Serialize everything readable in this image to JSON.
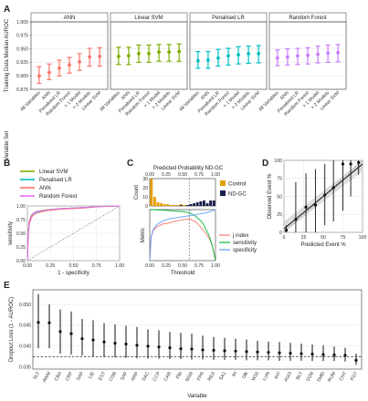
{
  "figure": {
    "panel_letters": [
      "A",
      "B",
      "C",
      "D",
      "E"
    ]
  },
  "chart_data": [
    {
      "panel": "A",
      "type": "scatter",
      "subtype": "pointrange-faceted",
      "ylabel": "Training Data Median AUROC",
      "xlabel": "Variable Set",
      "ylim": [
        0.875,
        1.0
      ],
      "yticks": [
        "0.875",
        "0.900",
        "0.925",
        "0.950",
        "0.975",
        "1.000"
      ],
      "categories": [
        "All Variables",
        "ANN",
        "Penalised LR",
        "Random Forest",
        "> 1 Model",
        "> 2 Models",
        "Linear SVM"
      ],
      "facets": [
        {
          "name": "ANN",
          "color": "#F8766D",
          "mid": [
            0.9,
            0.906,
            0.914,
            0.92,
            0.926,
            0.935,
            0.936
          ],
          "lo": [
            0.886,
            0.893,
            0.9,
            0.905,
            0.91,
            0.918,
            0.918
          ],
          "hi": [
            0.917,
            0.922,
            0.929,
            0.934,
            0.941,
            0.951,
            0.952
          ]
        },
        {
          "name": "Linear SVM",
          "color": "#7CAE00",
          "mid": [
            0.936,
            0.937,
            0.941,
            0.941,
            0.944,
            0.944,
            0.945
          ],
          "lo": [
            0.921,
            0.921,
            0.925,
            0.925,
            0.927,
            0.927,
            0.927
          ],
          "hi": [
            0.953,
            0.953,
            0.957,
            0.957,
            0.958,
            0.958,
            0.959
          ]
        },
        {
          "name": "Penalised LR",
          "color": "#00BFC4",
          "mid": [
            0.928,
            0.929,
            0.933,
            0.937,
            0.939,
            0.941,
            0.941
          ],
          "lo": [
            0.914,
            0.914,
            0.918,
            0.92,
            0.922,
            0.923,
            0.924
          ],
          "hi": [
            0.945,
            0.945,
            0.949,
            0.951,
            0.954,
            0.955,
            0.956
          ]
        },
        {
          "name": "Random Forest",
          "color": "#C77CFF",
          "mid": [
            0.933,
            0.935,
            0.937,
            0.938,
            0.94,
            0.942,
            0.943
          ],
          "lo": [
            0.919,
            0.92,
            0.921,
            0.922,
            0.924,
            0.925,
            0.926
          ],
          "hi": [
            0.948,
            0.95,
            0.951,
            0.952,
            0.955,
            0.957,
            0.958
          ]
        }
      ]
    },
    {
      "panel": "B",
      "type": "line",
      "xlabel": "1 - specificity",
      "ylabel": "sensitivity",
      "xlim": [
        0,
        1
      ],
      "ylim": [
        0,
        1
      ],
      "xticks": [
        "0.00",
        "0.25",
        "0.50",
        "0.75",
        "1.00"
      ],
      "yticks": [
        "0.00",
        "0.25",
        "0.50",
        "0.75",
        "1.00"
      ],
      "legend_position": "top-left",
      "series": [
        {
          "name": "Linear SVM",
          "color": "#7CAE00",
          "x": [
            0,
            0.01,
            0.02,
            0.04,
            0.06,
            0.1,
            0.2,
            0.35,
            0.6,
            0.8,
            1
          ],
          "y": [
            0,
            0.55,
            0.72,
            0.82,
            0.86,
            0.9,
            0.93,
            0.95,
            0.97,
            0.99,
            1
          ]
        },
        {
          "name": "Penalised LR",
          "color": "#00BFC4",
          "x": [
            0,
            0.01,
            0.02,
            0.04,
            0.06,
            0.1,
            0.2,
            0.35,
            0.6,
            0.8,
            1
          ],
          "y": [
            0,
            0.5,
            0.7,
            0.8,
            0.85,
            0.89,
            0.92,
            0.95,
            0.97,
            0.99,
            1
          ]
        },
        {
          "name": "ANN",
          "color": "#F8766D",
          "x": [
            0,
            0.01,
            0.02,
            0.04,
            0.06,
            0.1,
            0.2,
            0.35,
            0.6,
            0.8,
            1
          ],
          "y": [
            0,
            0.45,
            0.66,
            0.77,
            0.83,
            0.87,
            0.91,
            0.94,
            0.96,
            0.99,
            1
          ]
        },
        {
          "name": "Random Forest",
          "color": "#E76BF3",
          "x": [
            0,
            0.01,
            0.02,
            0.04,
            0.06,
            0.1,
            0.2,
            0.35,
            0.6,
            0.8,
            1
          ],
          "y": [
            0,
            0.52,
            0.71,
            0.81,
            0.86,
            0.9,
            0.92,
            0.95,
            0.97,
            0.99,
            1
          ]
        }
      ]
    },
    {
      "panel": "C",
      "type": "bar",
      "title": "Predicted Probability ND-GC",
      "ylabel": "Count",
      "xlim": [
        0,
        1
      ],
      "xticks": [
        "0.00",
        "0.25",
        "0.50",
        "0.75",
        "1.00"
      ],
      "yticks": [
        "0",
        "10",
        "20",
        "30"
      ],
      "ylim": [
        0,
        30
      ],
      "threshold": 0.6,
      "legend_position": "right",
      "series": [
        {
          "name": "Control",
          "color": "#E69F00",
          "x": [
            0.025,
            0.075,
            0.125,
            0.175,
            0.225,
            0.275,
            0.325,
            0.375,
            0.425,
            0.475,
            0.525,
            0.575,
            0.625,
            0.675
          ],
          "values": [
            30,
            10,
            4,
            3,
            2,
            2,
            1,
            1,
            1,
            2,
            1,
            1,
            1,
            1
          ]
        },
        {
          "name": "ND-GC",
          "color": "#1B1F4B",
          "x": [
            0.475,
            0.575,
            0.625,
            0.675,
            0.725,
            0.775,
            0.825,
            0.875,
            0.925,
            0.975
          ],
          "values": [
            1,
            1,
            2,
            3,
            4,
            5,
            6,
            3,
            6,
            6
          ]
        }
      ]
    },
    {
      "panel": "C-lower",
      "type": "line",
      "xlabel": "Threshold",
      "ylabel": "Metric",
      "xlim": [
        0,
        1
      ],
      "ylim": [
        0,
        1
      ],
      "xticks": [
        "0.00",
        "0.25",
        "0.50",
        "0.75",
        "1.00"
      ],
      "threshold": 0.6,
      "legend_position": "bottom-right",
      "series": [
        {
          "name": "j index",
          "color": "#F8766D",
          "x": [
            0,
            0.02,
            0.05,
            0.1,
            0.2,
            0.3,
            0.4,
            0.5,
            0.6,
            0.7,
            0.8,
            0.9,
            0.95,
            1
          ],
          "y": [
            0,
            0.45,
            0.58,
            0.66,
            0.72,
            0.74,
            0.78,
            0.8,
            0.82,
            0.76,
            0.62,
            0.45,
            0.3,
            0
          ]
        },
        {
          "name": "sensitivity",
          "color": "#00BA38",
          "x": [
            0,
            0.2,
            0.4,
            0.5,
            0.6,
            0.7,
            0.8,
            0.9,
            0.95,
            1
          ],
          "y": [
            1,
            0.99,
            0.97,
            0.96,
            0.94,
            0.87,
            0.75,
            0.5,
            0.3,
            0
          ]
        },
        {
          "name": "specificity",
          "color": "#619CFF",
          "x": [
            0,
            0.02,
            0.05,
            0.1,
            0.2,
            0.3,
            0.5,
            0.7,
            0.9,
            1
          ],
          "y": [
            0,
            0.46,
            0.6,
            0.7,
            0.78,
            0.82,
            0.86,
            0.9,
            0.95,
            1
          ]
        }
      ]
    },
    {
      "panel": "D",
      "type": "scatter",
      "subtype": "calibration",
      "xlabel": "Predicted Event %",
      "ylabel": "Observed Event %",
      "xlim": [
        0,
        100
      ],
      "ylim": [
        0,
        100
      ],
      "xticks": [
        "0",
        "25",
        "50",
        "75",
        "100"
      ],
      "yticks": [
        "0",
        "25",
        "50",
        "75",
        "100"
      ],
      "points": [
        {
          "x": 3,
          "y": 3,
          "lo": 0,
          "hi": 10
        },
        {
          "x": 15,
          "y": 18,
          "lo": 0,
          "hi": 70
        },
        {
          "x": 28,
          "y": 35,
          "lo": 0,
          "hi": 82
        },
        {
          "x": 40,
          "y": 38,
          "lo": 0,
          "hi": 88
        },
        {
          "x": 52,
          "y": 52,
          "lo": 10,
          "hi": 95
        },
        {
          "x": 63,
          "y": 62,
          "lo": 15,
          "hi": 100
        },
        {
          "x": 75,
          "y": 95,
          "lo": 30,
          "hi": 100
        },
        {
          "x": 85,
          "y": 95,
          "lo": 50,
          "hi": 100
        },
        {
          "x": 95,
          "y": 97,
          "lo": 80,
          "hi": 100
        }
      ],
      "fit": {
        "x": [
          0,
          100
        ],
        "y": [
          5,
          95
        ]
      }
    },
    {
      "panel": "E",
      "type": "scatter",
      "subtype": "pointrange",
      "xlabel": "Variable",
      "ylabel": "Dropout Loss (1 - AUROC)",
      "ylim": [
        0.0345,
        0.0535
      ],
      "yticks": [
        "0.035",
        "0.040",
        "0.045",
        "0.050"
      ],
      "reference_line": 0.0375,
      "categories": [
        "SLT",
        "AWM",
        "CBA",
        "CRF",
        "SAP",
        "LIE",
        "EST",
        "COB",
        "SAF",
        "ARP",
        "SAC",
        "CCP",
        "CAR",
        "FBI",
        "MSR",
        "FPR",
        "REA",
        "SA1",
        "IH",
        "Dlk",
        "W16",
        "LUN",
        "IHT",
        "AGO",
        "BLT",
        "D2M",
        "DelD",
        "RUM",
        "CHT",
        "FGT"
      ],
      "mid": [
        0.0457,
        0.0456,
        0.0435,
        0.043,
        0.0418,
        0.0415,
        0.041,
        0.0407,
        0.0405,
        0.0402,
        0.04,
        0.0398,
        0.0396,
        0.0394,
        0.0393,
        0.0391,
        0.039,
        0.0389,
        0.0388,
        0.0387,
        0.0386,
        0.0385,
        0.0384,
        0.0383,
        0.0382,
        0.0381,
        0.038,
        0.0379,
        0.0378,
        0.0366
      ],
      "lo": [
        0.0395,
        0.0395,
        0.0382,
        0.038,
        0.0378,
        0.0375,
        0.0374,
        0.0373,
        0.0372,
        0.0371,
        0.037,
        0.037,
        0.0369,
        0.0369,
        0.0368,
        0.0368,
        0.0367,
        0.0367,
        0.0367,
        0.0366,
        0.0366,
        0.0366,
        0.0365,
        0.0365,
        0.0365,
        0.0364,
        0.0364,
        0.0364,
        0.0363,
        0.0355
      ],
      "hi": [
        0.0525,
        0.05,
        0.0488,
        0.0483,
        0.0465,
        0.0462,
        0.0455,
        0.0452,
        0.0449,
        0.0446,
        0.044,
        0.0438,
        0.0434,
        0.0432,
        0.043,
        0.0425,
        0.0422,
        0.042,
        0.0418,
        0.0416,
        0.0413,
        0.0411,
        0.041,
        0.0408,
        0.0406,
        0.0404,
        0.0402,
        0.0399,
        0.0396,
        0.0382
      ]
    }
  ]
}
